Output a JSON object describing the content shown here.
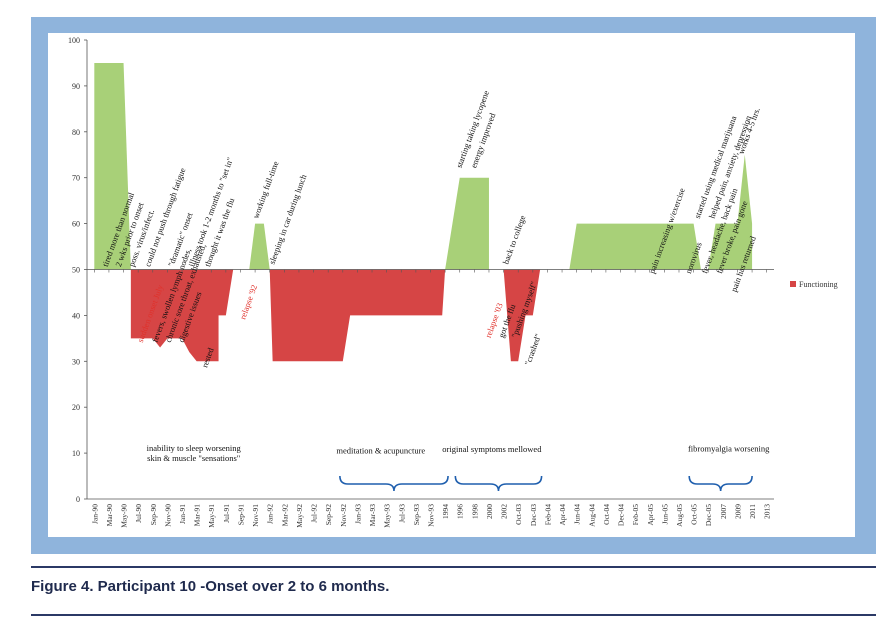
{
  "caption": "Figure 4. Participant 10 -Onset over 2 to 6 months.",
  "chart_data": {
    "type": "area",
    "title": "",
    "xlabel": "",
    "ylabel": "",
    "ylim": [
      0,
      100
    ],
    "baseline": 50,
    "yticks": [
      0,
      10,
      20,
      30,
      40,
      50,
      60,
      70,
      80,
      90,
      100
    ],
    "grid": false,
    "legend": {
      "position": "right",
      "entries": [
        "Functioning"
      ]
    },
    "colors": {
      "above": "#a8d078",
      "below": "#d64545",
      "axis": "#555555",
      "brace": "#1f5fae",
      "annotation_red": "#e0302a"
    },
    "x": [
      "Jan-90",
      "Mar-90",
      "May-90",
      "Jul-90",
      "Sep-90",
      "Nov-90",
      "Jan-91",
      "Mar-91",
      "May-91",
      "Jul-91",
      "Sep-91",
      "Nov-91",
      "Jan-92",
      "Mar-92",
      "May-92",
      "Jul-92",
      "Sep-92",
      "Nov-92",
      "Jan-93",
      "Mar-93",
      "May-93",
      "Jul-93",
      "Sep-93",
      "Nov-93",
      "1994",
      "1996",
      "1998",
      "2000",
      "2002",
      "Oct-03",
      "Dec-03",
      "Feb-04",
      "Apr-04",
      "Jun-04",
      "Aug-04",
      "Oct-04",
      "Dec-04",
      "Feb-05",
      "Apr-05",
      "Jun-05",
      "Aug-05",
      "Oct-05",
      "Dec-05",
      "2007",
      "2009",
      "2011",
      "2013"
    ],
    "series": [
      {
        "name": "Functioning",
        "points": [
          [
            0,
            95
          ],
          [
            2,
            95
          ],
          [
            2.5,
            50
          ],
          [
            2.5,
            35
          ],
          [
            4,
            35
          ],
          [
            4.5,
            33
          ],
          [
            5,
            35
          ],
          [
            5.5,
            35
          ],
          [
            6,
            35
          ],
          [
            6.5,
            32
          ],
          [
            7,
            30
          ],
          [
            8,
            30
          ],
          [
            8.5,
            30
          ],
          [
            8.5,
            40
          ],
          [
            9,
            40
          ],
          [
            9.5,
            50
          ],
          [
            10.6,
            50
          ],
          [
            11,
            60
          ],
          [
            11.6,
            60
          ],
          [
            12,
            50
          ],
          [
            12.2,
            30
          ],
          [
            17,
            30
          ],
          [
            17.5,
            40
          ],
          [
            23.8,
            40
          ],
          [
            24,
            50
          ],
          [
            24.5,
            60
          ],
          [
            25,
            70
          ],
          [
            27,
            70
          ],
          [
            27,
            50
          ],
          [
            28,
            50
          ],
          [
            28.5,
            30
          ],
          [
            29,
            30
          ],
          [
            29.5,
            40
          ],
          [
            30,
            40
          ],
          [
            30.5,
            50
          ],
          [
            32.5,
            50
          ],
          [
            33,
            60
          ],
          [
            41,
            60
          ],
          [
            41.5,
            50
          ],
          [
            42,
            50
          ],
          [
            42.5,
            60
          ],
          [
            44,
            60
          ],
          [
            44.5,
            75
          ],
          [
            45,
            60
          ],
          [
            45,
            50
          ]
        ]
      }
    ],
    "annotations": [
      {
        "text": "tired more than normal",
        "x": 0.9,
        "y": 50.5,
        "color": "dark"
      },
      {
        "text": "2 wks prior to onset",
        "x": 1.8,
        "y": 50.5,
        "color": "dark"
      },
      {
        "text": "poss. virus/infect.",
        "x": 2.7,
        "y": 50.5,
        "color": "dark"
      },
      {
        "text": "could not push through fatigue",
        "x": 3.8,
        "y": 50.5,
        "color": "dark"
      },
      {
        "text": "\"dramatic\" onset",
        "x": 5.4,
        "y": 50.5,
        "color": "dark"
      },
      {
        "text": "illness took 1-2 months to \"set in\"",
        "x": 6.8,
        "y": 50.5,
        "color": "dark"
      },
      {
        "text": "thought it was the flu",
        "x": 7.9,
        "y": 50.5,
        "color": "dark"
      },
      {
        "text": "working full-time",
        "x": 11.2,
        "y": 61,
        "color": "dark"
      },
      {
        "text": "sleeping in car during lunch",
        "x": 12.3,
        "y": 51,
        "color": "dark"
      },
      {
        "text": "starting taking lycopene",
        "x": 25.1,
        "y": 72,
        "color": "dark"
      },
      {
        "text": "energy improved",
        "x": 26.1,
        "y": 72,
        "color": "dark"
      },
      {
        "text": "back to college",
        "x": 28.3,
        "y": 51,
        "color": "dark"
      },
      {
        "text": "started using medical marijuana",
        "x": 41.4,
        "y": 61,
        "color": "dark"
      },
      {
        "text": "helped pain, anxiety, depression",
        "x": 42.4,
        "y": 61,
        "color": "dark"
      },
      {
        "text": "works 4-5 hrs.",
        "x": 44.4,
        "y": 75,
        "color": "dark"
      },
      {
        "text": "sudden onset July",
        "x": 3.3,
        "y": 34,
        "color": "red"
      },
      {
        "text": "fevers, swollen lymph nodes,",
        "x": 4.3,
        "y": 34,
        "color": "dark"
      },
      {
        "text": "chronic sore throat, exhausted,",
        "x": 5.2,
        "y": 34,
        "color": "dark"
      },
      {
        "text": "digestive issues",
        "x": 6.1,
        "y": 34,
        "color": "dark"
      },
      {
        "text": "rested",
        "x": 7.7,
        "y": 28.5,
        "color": "dark"
      },
      {
        "text": "relapse '92",
        "x": 10.3,
        "y": 39,
        "color": "red"
      },
      {
        "text": "relapse '03",
        "x": 27.1,
        "y": 35,
        "color": "red"
      },
      {
        "text": "got the flu",
        "x": 28.0,
        "y": 35,
        "color": "dark"
      },
      {
        "text": "\"pushing myself\"",
        "x": 28.9,
        "y": 35,
        "color": "dark"
      },
      {
        "text": "\"crashed\"",
        "x": 29.8,
        "y": 29,
        "color": "dark"
      },
      {
        "text": "pain increasing w/exercise",
        "x": 38.3,
        "y": 49,
        "color": "dark"
      },
      {
        "text": "norovirus",
        "x": 40.8,
        "y": 49,
        "color": "dark"
      },
      {
        "text": "fever, headache, back pain",
        "x": 41.9,
        "y": 49,
        "color": "dark"
      },
      {
        "text": "fever broke, pain gone",
        "x": 42.9,
        "y": 49,
        "color": "dark"
      },
      {
        "text": "pain has returned",
        "x": 43.9,
        "y": 45,
        "color": "dark"
      }
    ],
    "notes": [
      {
        "lines": [
          "inability to sleep worsening",
          "skin & muscle \"sensations\""
        ],
        "x": 6.8,
        "y": [
          10.5,
          8.3
        ]
      },
      {
        "lines": [
          "meditation & acupuncture"
        ],
        "x": 19.6,
        "y": [
          9.9
        ]
      },
      {
        "lines": [
          "original symptoms mellowed"
        ],
        "x": 27.2,
        "y": [
          10.2
        ]
      },
      {
        "lines": [
          "fibromyalgia worsening"
        ],
        "x": 43.4,
        "y": [
          10.4
        ]
      }
    ],
    "braces": [
      {
        "from": 16.8,
        "to": 24.2
      },
      {
        "from": 24.7,
        "to": 30.6
      },
      {
        "from": 40.7,
        "to": 45.0
      }
    ]
  }
}
